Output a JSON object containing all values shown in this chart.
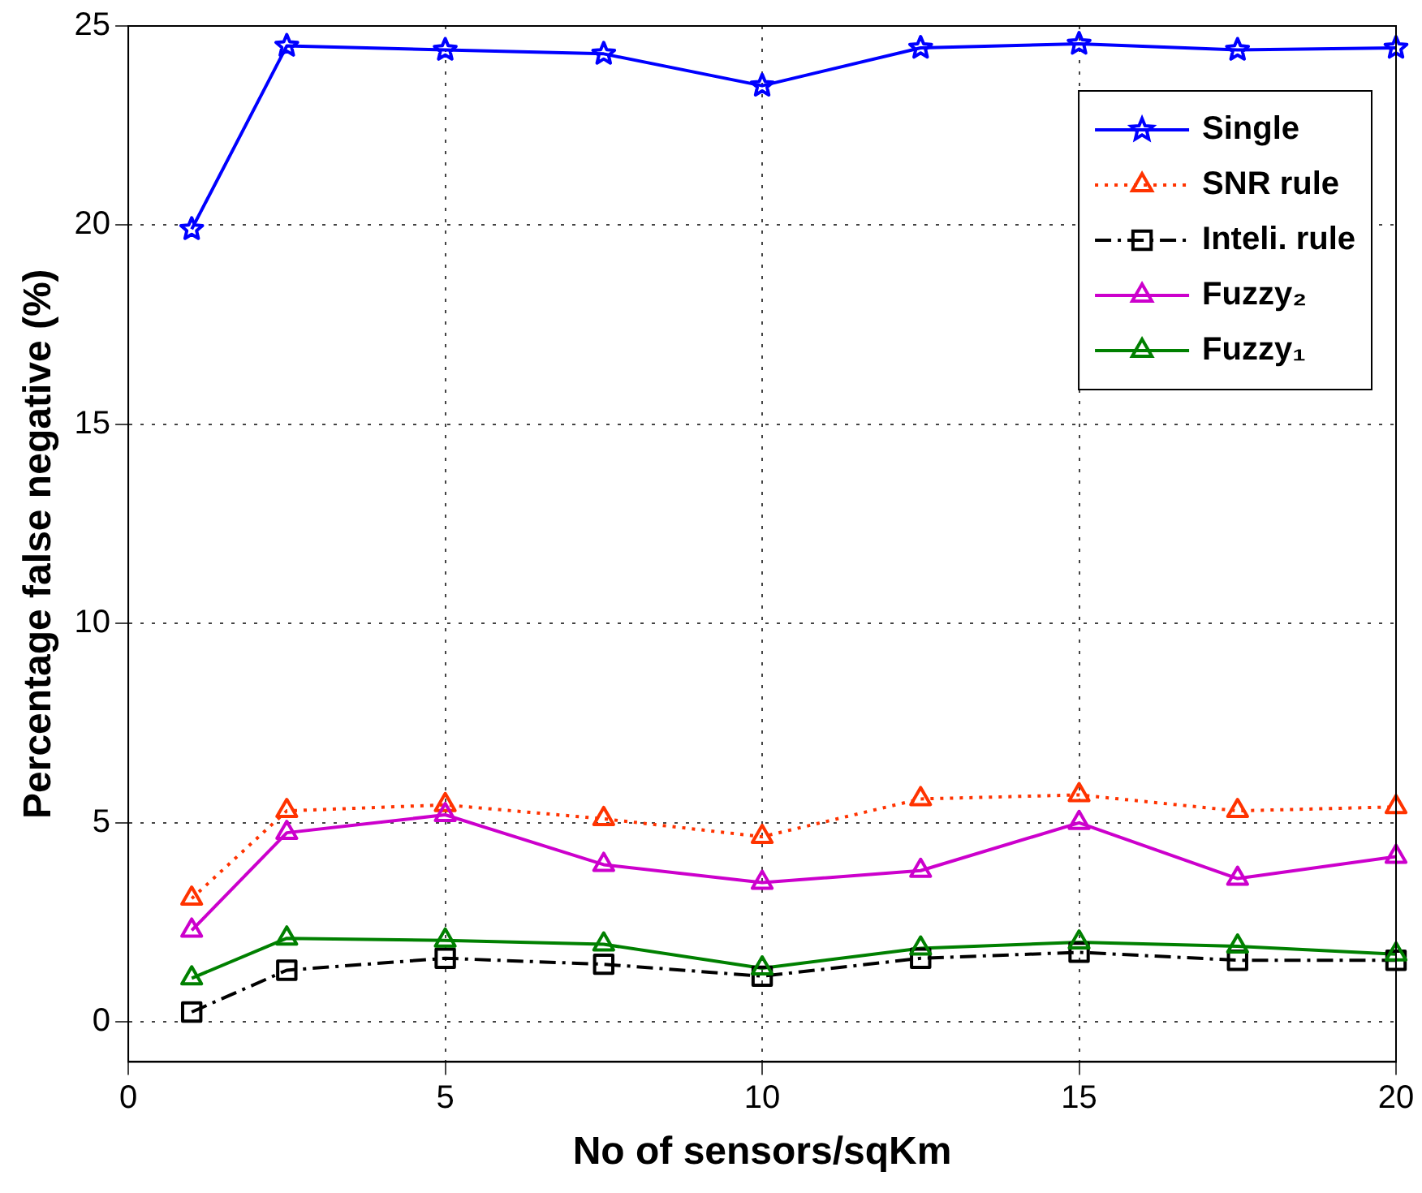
{
  "chart_data": {
    "type": "line",
    "xlabel": "No of sensors/sqKm",
    "ylabel": "Percentage false negative (%)",
    "x": [
      1,
      2.5,
      5,
      7.5,
      10,
      12.5,
      15,
      17.5,
      20
    ],
    "series": [
      {
        "name": "Single",
        "color": "#0000ff",
        "marker": "star",
        "line_style": "solid",
        "values": [
          19.9,
          24.5,
          24.4,
          24.3,
          23.5,
          24.45,
          24.55,
          24.4,
          24.45
        ]
      },
      {
        "name": "SNR rule",
        "color": "#ff3300",
        "marker": "triangle",
        "line_style": "dotted",
        "values": [
          3.1,
          5.3,
          5.45,
          5.1,
          4.65,
          5.6,
          5.7,
          5.3,
          5.4
        ]
      },
      {
        "name": "Inteli. rule",
        "color": "#000000",
        "marker": "square",
        "line_style": "dashed",
        "values": [
          0.25,
          1.3,
          1.6,
          1.45,
          1.15,
          1.6,
          1.75,
          1.55,
          1.55
        ]
      },
      {
        "name": "Fuzzy₂",
        "color": "#cc00cc",
        "marker": "triangle",
        "line_style": "solid",
        "values": [
          2.3,
          4.75,
          5.2,
          3.95,
          3.5,
          3.8,
          5.0,
          3.6,
          4.15
        ]
      },
      {
        "name": "Fuzzy₁",
        "color": "#008000",
        "marker": "triangle",
        "line_style": "solid",
        "values": [
          1.1,
          2.1,
          2.05,
          1.95,
          1.35,
          1.85,
          2.0,
          1.9,
          1.7
        ]
      }
    ],
    "xlim": [
      0,
      20
    ],
    "xticks": [
      0,
      5,
      10,
      15,
      20
    ],
    "ylim": [
      -1,
      25
    ],
    "yticks": [
      0,
      5,
      10,
      15,
      20,
      25
    ],
    "grid": true,
    "legend": "top right"
  }
}
